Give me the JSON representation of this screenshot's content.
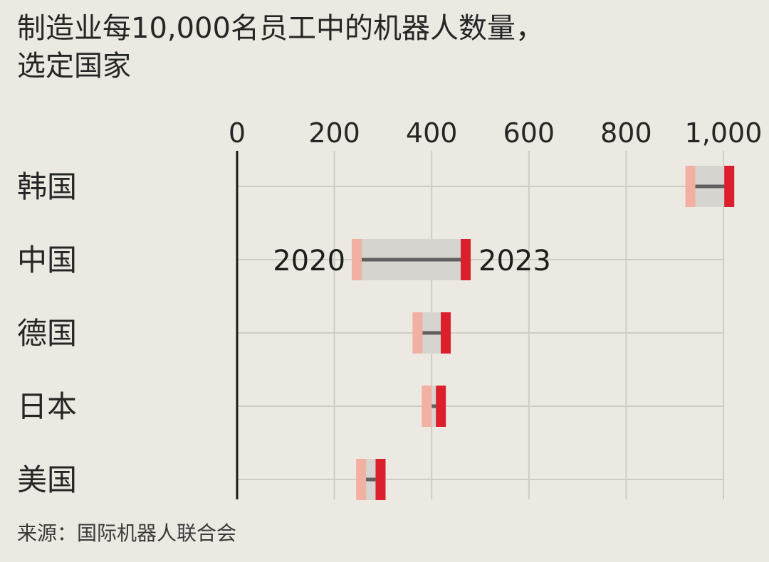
{
  "title_line1": "制造业每10,000名员工中的机器人数量，",
  "title_line2": "选定国家",
  "source": "来源：国际机器人联合会",
  "colors": {
    "background": "#ebe9e1",
    "grid": "#cfccc4",
    "axis": "#1a1a1a",
    "range_fill": "#d6d4ce",
    "connector": "#5f5f5f",
    "marker_2020": "#f2b0a2",
    "marker_2023": "#dc1f2c"
  },
  "chart_data": {
    "type": "dumbbell",
    "title": "制造业每10,000名员工中的机器人数量，选定国家",
    "categories": [
      "韩国",
      "中国",
      "德国",
      "日本",
      "美国"
    ],
    "xlim": [
      0,
      1000
    ],
    "xticks": [
      0,
      200,
      400,
      600,
      800,
      1000
    ],
    "xtick_labels": [
      "0",
      "200",
      "400",
      "600",
      "800",
      "1,000"
    ],
    "grid": true,
    "series": [
      {
        "name": "2020",
        "values": [
          932,
          246,
          371,
          390,
          255
        ]
      },
      {
        "name": "2023",
        "values": [
          1012,
          470,
          429,
          419,
          295
        ]
      }
    ],
    "annotations": [
      {
        "category": "中国",
        "series": "2020",
        "text": "2020"
      },
      {
        "category": "中国",
        "series": "2023",
        "text": "2023"
      }
    ]
  }
}
